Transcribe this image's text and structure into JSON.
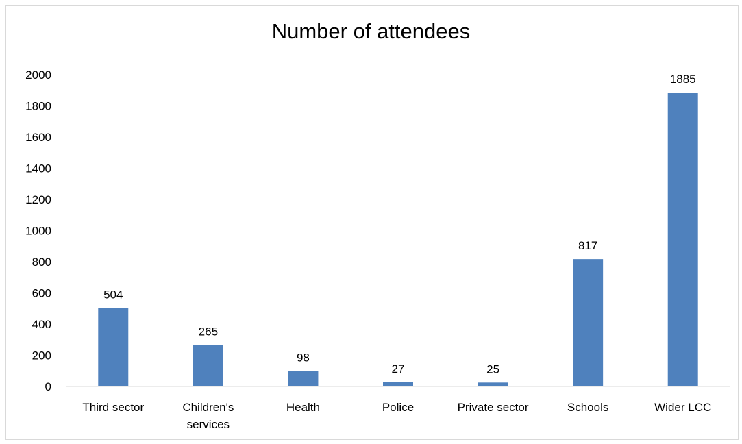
{
  "chart_data": {
    "type": "bar",
    "title": "Number of attendees",
    "xlabel": "",
    "ylabel": "",
    "categories": [
      "Third sector",
      "Children's services",
      "Health",
      "Police",
      "Private sector",
      "Schools",
      "Wider LCC"
    ],
    "category_lines": [
      [
        "Third sector"
      ],
      [
        "Children's",
        "services"
      ],
      [
        "Health"
      ],
      [
        "Police"
      ],
      [
        "Private sector"
      ],
      [
        "Schools"
      ],
      [
        "Wider LCC"
      ]
    ],
    "values": [
      504,
      265,
      98,
      27,
      25,
      817,
      1885
    ],
    "ylim": [
      0,
      2000
    ],
    "yticks": [
      0,
      200,
      400,
      600,
      800,
      1000,
      1200,
      1400,
      1600,
      1800,
      2000
    ],
    "grid": false,
    "legend": "none",
    "bar_color": "#4f81bd",
    "axis_color": "#d9d9d9"
  }
}
